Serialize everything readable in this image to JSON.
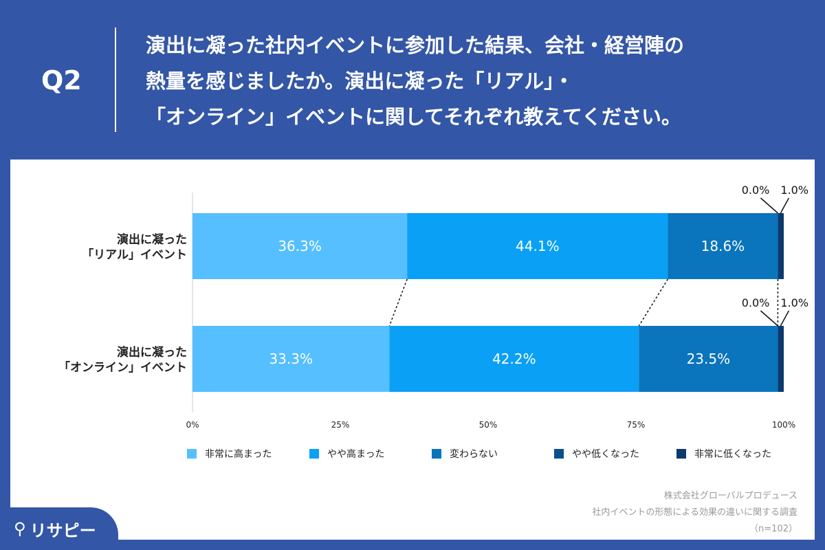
{
  "header": {
    "question": "Q2",
    "title": "演出に凝った社内イベントに参加した結果、会社・経営陣の\n熱量を感じましたか。演出に凝った「リアル」・\n「オンライン」イベントに関してそれぞれ教えてください。"
  },
  "chart_data": {
    "type": "bar",
    "orientation": "horizontal",
    "stacked": true,
    "categories": [
      "演出に凝った\n「リアル」イベント",
      "演出に凝った\n「オンライン」イベント"
    ],
    "series": [
      {
        "name": "非常に高まった",
        "color": "#55bfff",
        "values": [
          36.3,
          33.3
        ]
      },
      {
        "name": "やや高まった",
        "color": "#0aa0f5",
        "values": [
          44.1,
          42.2
        ]
      },
      {
        "name": "変わらない",
        "color": "#0a74bd",
        "values": [
          18.6,
          23.5
        ]
      },
      {
        "name": "やや低くなった",
        "color": "#0a4f8c",
        "values": [
          0.0,
          0.0
        ]
      },
      {
        "name": "非常に低くなった",
        "color": "#0b3a6c",
        "values": [
          1.0,
          1.0
        ]
      }
    ],
    "xlim": [
      0,
      100
    ],
    "xticks": [
      "0%",
      "25%",
      "50%",
      "75%",
      "100%"
    ],
    "legend_position": "bottom"
  },
  "source": {
    "line1": "株式会社グローバルプロデュース",
    "line2": "社内イベントの形態による効果の違いに関する調査",
    "line3": "（n=102）"
  },
  "logo": "リサピー"
}
